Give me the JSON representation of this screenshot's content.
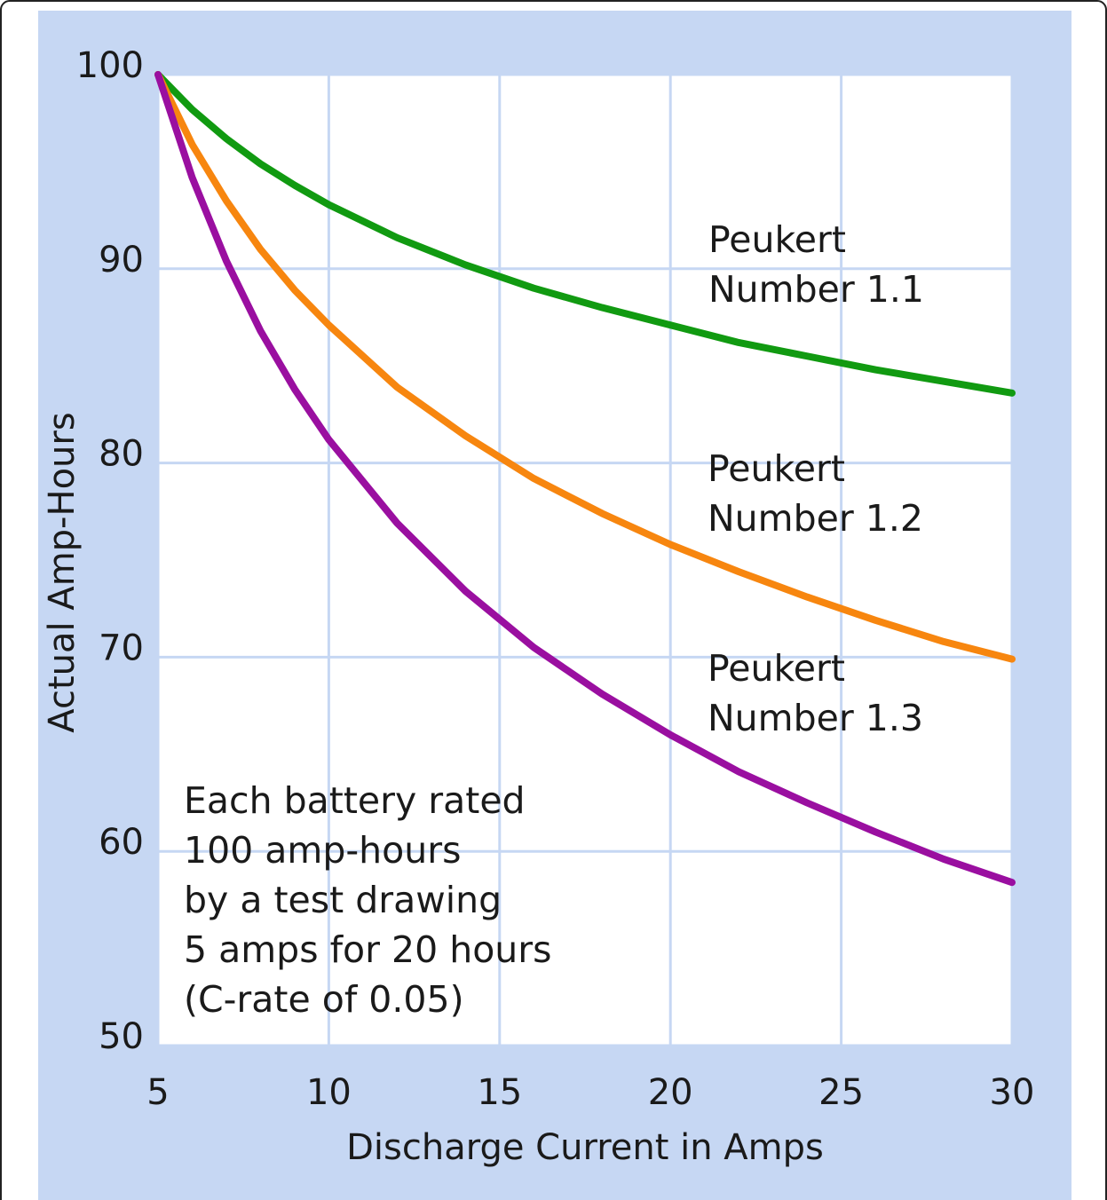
{
  "chart_data": {
    "type": "line",
    "xlabel": "Discharge Current in Amps",
    "ylabel": "Actual Amp-Hours",
    "x": [
      5,
      6,
      7,
      8,
      9,
      10,
      12,
      14,
      16,
      18,
      20,
      22,
      24,
      26,
      28,
      30
    ],
    "series": [
      {
        "name": "Peukert Number 1.1",
        "color": "#119a11",
        "values": [
          100,
          98.2,
          96.7,
          95.4,
          94.3,
          93.3,
          91.6,
          90.2,
          89.0,
          88.0,
          87.1,
          86.2,
          85.5,
          84.8,
          84.2,
          83.6
        ]
      },
      {
        "name": "Peukert Number 1.2",
        "color": "#f7860f",
        "values": [
          100,
          96.4,
          93.5,
          91.0,
          88.9,
          87.1,
          83.9,
          81.4,
          79.2,
          77.4,
          75.8,
          74.4,
          73.1,
          71.9,
          70.8,
          69.9
        ]
      },
      {
        "name": "Peukert Number 1.3",
        "color": "#9a0fa0",
        "values": [
          100,
          94.7,
          90.4,
          86.8,
          83.8,
          81.2,
          76.9,
          73.4,
          70.5,
          68.1,
          66.0,
          64.1,
          62.5,
          61.0,
          59.6,
          58.4
        ]
      }
    ],
    "annotations": [
      [
        "Peukert",
        "Number 1.1"
      ],
      [
        "Peukert",
        "Number 1.2"
      ],
      [
        "Peukert",
        "Number 1.3"
      ],
      [
        "Each battery rated",
        "100 amp-hours",
        "by a test drawing",
        "5 amps for 20 hours",
        "(C-rate of 0.05)"
      ]
    ],
    "xlim": [
      5,
      30
    ],
    "xticks": [
      5,
      10,
      15,
      20,
      25,
      30
    ],
    "ylim": [
      50,
      100
    ],
    "yticks": [
      50,
      60,
      70,
      80,
      90,
      100
    ],
    "grid": true
  }
}
